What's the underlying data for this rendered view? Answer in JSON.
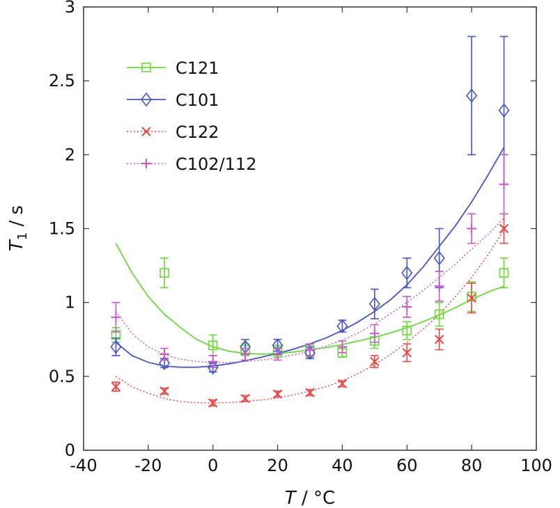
{
  "chart_data": {
    "type": "scatter",
    "title": "",
    "xlabel_var": "T",
    "xlabel_unit": " / °C",
    "ylabel_var": "T",
    "ylabel_sub": "1",
    "ylabel_unit": " / s",
    "xlim": [
      -40,
      100
    ],
    "ylim": [
      0,
      3
    ],
    "xticks": [
      -40,
      -20,
      0,
      20,
      40,
      60,
      80,
      100
    ],
    "yticks": [
      0,
      0.5,
      1,
      1.5,
      2,
      2.5,
      3
    ],
    "xtick_labels": [
      "-40",
      "-20",
      "0",
      "20",
      "40",
      "60",
      "80",
      "100"
    ],
    "ytick_labels": [
      "0",
      "0.5",
      "1",
      "1.5",
      "2",
      "2.5",
      "3"
    ],
    "grid": false,
    "legend_position": "top-left",
    "series": [
      {
        "name": "C121",
        "color": "#66dd33",
        "marker": "square",
        "line_style": "solid",
        "x": [
          -30,
          -15,
          0,
          10,
          20,
          30,
          40,
          50,
          60,
          70,
          80,
          90
        ],
        "y": [
          0.78,
          1.2,
          0.71,
          0.68,
          0.67,
          0.67,
          0.66,
          0.74,
          0.81,
          0.92,
          1.04,
          1.2
        ],
        "err": [
          0.05,
          0.1,
          0.07,
          0.04,
          0.04,
          0.04,
          0.03,
          0.05,
          0.06,
          0.08,
          0.1,
          0.1
        ],
        "fit_x": [
          -30,
          -25,
          -20,
          -15,
          -10,
          -5,
          0,
          5,
          10,
          15,
          20,
          25,
          30,
          35,
          40,
          45,
          50,
          55,
          60,
          65,
          70,
          75,
          80,
          85,
          90
        ],
        "fit_y": [
          1.4,
          1.2,
          1.04,
          0.92,
          0.83,
          0.75,
          0.7,
          0.67,
          0.655,
          0.65,
          0.655,
          0.665,
          0.68,
          0.695,
          0.715,
          0.74,
          0.765,
          0.795,
          0.83,
          0.87,
          0.915,
          0.965,
          1.02,
          1.07,
          1.11
        ]
      },
      {
        "name": "C101",
        "color": "#4455cc",
        "marker": "diamond",
        "line_style": "solid",
        "x": [
          -30,
          -15,
          0,
          10,
          20,
          30,
          40,
          50,
          60,
          70,
          80,
          90
        ],
        "y": [
          0.7,
          0.59,
          0.56,
          0.7,
          0.71,
          0.66,
          0.84,
          0.99,
          1.2,
          1.3,
          2.4,
          2.3
        ],
        "err": [
          0.06,
          0.03,
          0.03,
          0.05,
          0.04,
          0.04,
          0.04,
          0.1,
          0.1,
          0.2,
          0.4,
          0.5
        ],
        "fit_x": [
          -30,
          -25,
          -20,
          -15,
          -10,
          -5,
          0,
          5,
          10,
          15,
          20,
          25,
          30,
          35,
          40,
          45,
          50,
          55,
          60,
          65,
          70,
          75,
          80,
          85,
          90
        ],
        "fit_y": [
          0.73,
          0.64,
          0.595,
          0.57,
          0.562,
          0.562,
          0.57,
          0.585,
          0.605,
          0.63,
          0.655,
          0.685,
          0.72,
          0.76,
          0.81,
          0.87,
          0.94,
          1.02,
          1.12,
          1.24,
          1.38,
          1.52,
          1.68,
          1.86,
          2.05
        ]
      },
      {
        "name": "C122",
        "color": "#ee4444",
        "marker": "x",
        "line_style": "dotted",
        "x": [
          -30,
          -15,
          0,
          10,
          20,
          30,
          40,
          50,
          60,
          70,
          80,
          90
        ],
        "y": [
          0.43,
          0.4,
          0.32,
          0.35,
          0.38,
          0.39,
          0.45,
          0.6,
          0.66,
          0.75,
          1.03,
          1.5
        ],
        "err": [
          0.03,
          0.02,
          0.02,
          0.02,
          0.02,
          0.02,
          0.02,
          0.04,
          0.06,
          0.07,
          0.1,
          0.1
        ],
        "fit_x": [
          -30,
          -25,
          -20,
          -15,
          -10,
          -5,
          0,
          5,
          10,
          15,
          20,
          25,
          30,
          35,
          40,
          45,
          50,
          55,
          60,
          65,
          70,
          75,
          80,
          85,
          90
        ],
        "fit_y": [
          0.5,
          0.43,
          0.385,
          0.35,
          0.33,
          0.322,
          0.32,
          0.323,
          0.33,
          0.34,
          0.355,
          0.375,
          0.4,
          0.43,
          0.47,
          0.52,
          0.58,
          0.65,
          0.73,
          0.82,
          0.92,
          1.04,
          1.17,
          1.32,
          1.49
        ]
      },
      {
        "name": "C102/112",
        "color": "#cc55cc",
        "marker": "plus",
        "line_style": "dotted",
        "x": [
          -30,
          -15,
          0,
          10,
          20,
          30,
          40,
          50,
          60,
          70,
          80,
          90
        ],
        "y": [
          0.9,
          0.65,
          0.6,
          0.65,
          0.65,
          0.68,
          0.7,
          0.79,
          0.97,
          1.11,
          1.5,
          1.8
        ],
        "err": [
          0.1,
          0.04,
          0.04,
          0.04,
          0.04,
          0.04,
          0.04,
          0.06,
          0.07,
          0.1,
          0.1,
          0.2
        ],
        "fit_x": [
          -30,
          -25,
          -20,
          -15,
          -10,
          -5,
          0,
          5,
          10,
          15,
          20,
          25,
          30,
          35,
          40,
          45,
          50,
          55,
          60,
          65,
          70,
          75,
          80,
          85,
          90
        ],
        "fit_y": [
          0.94,
          0.79,
          0.7,
          0.645,
          0.615,
          0.6,
          0.595,
          0.595,
          0.6,
          0.61,
          0.625,
          0.645,
          0.67,
          0.705,
          0.745,
          0.795,
          0.855,
          0.925,
          1.0,
          1.08,
          1.17,
          1.26,
          1.36,
          1.46,
          1.57
        ]
      }
    ]
  }
}
